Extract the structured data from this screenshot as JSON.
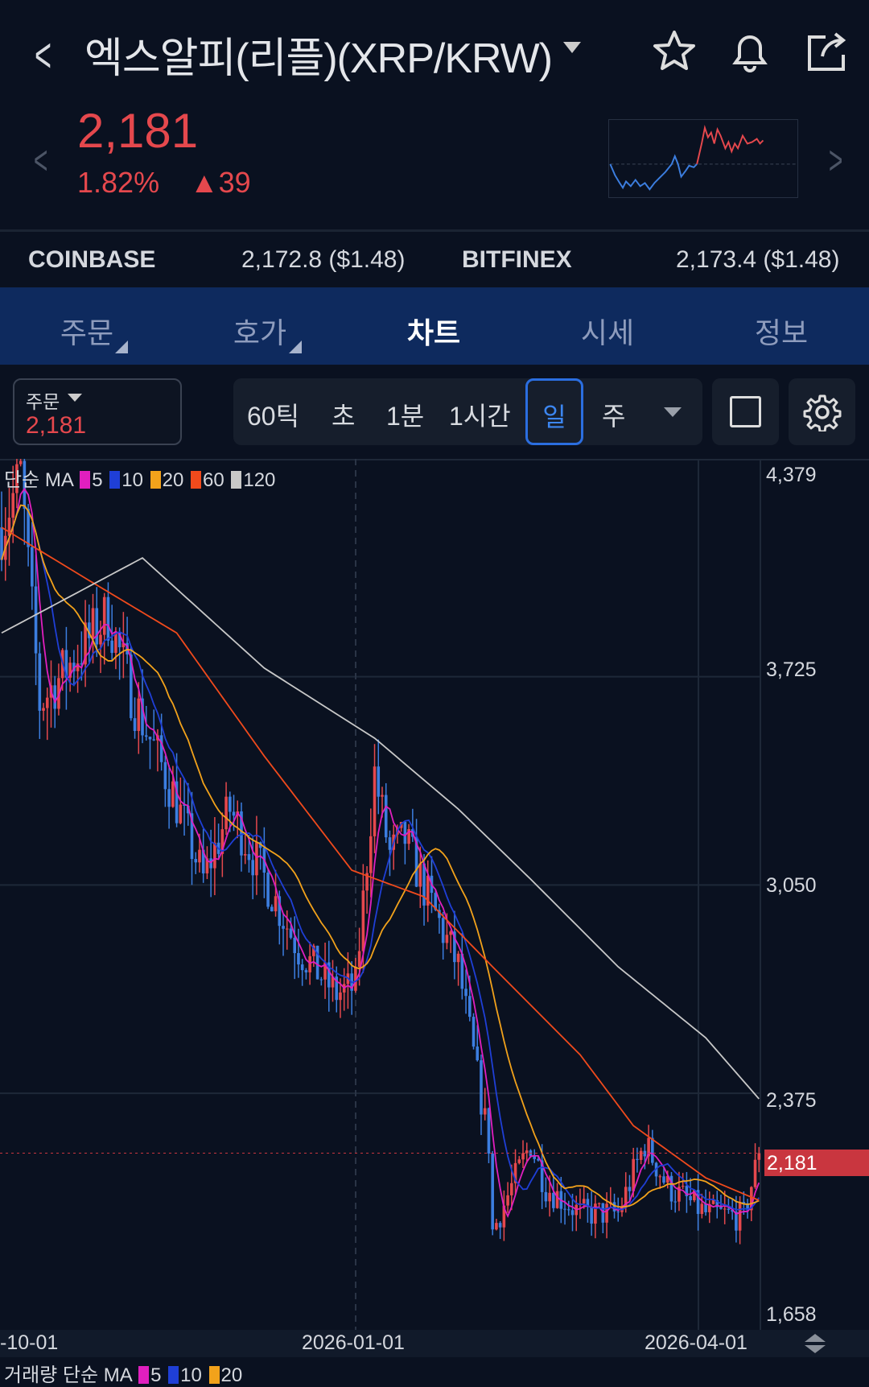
{
  "header": {
    "title": "엑스알피(리플)(XRP/KRW)",
    "icons": [
      "back-icon",
      "dropdown-caret-icon",
      "star-icon",
      "bell-icon",
      "share-icon"
    ]
  },
  "quote": {
    "price": "2,181",
    "change_pct": "1.82%",
    "change_abs": "▲39",
    "color": "#e5484d"
  },
  "exchanges": [
    {
      "name": "COINBASE",
      "value": "2,172.8 ($1.48)"
    },
    {
      "name": "BITFINEX",
      "value": "2,173.4 ($1.48)"
    }
  ],
  "tabs": [
    {
      "label": "주문"
    },
    {
      "label": "호가"
    },
    {
      "label": "차트",
      "active": true
    },
    {
      "label": "시세"
    },
    {
      "label": "정보"
    }
  ],
  "order_box": {
    "label": "주문",
    "value": "2,181"
  },
  "intervals": [
    "60틱",
    "초",
    "1분",
    "1시간",
    "일",
    "주"
  ],
  "selected_interval": "일",
  "legend": {
    "prefix": "단순 MA",
    "periods": [
      "5",
      "10",
      "20",
      "60",
      "120"
    ],
    "colors": [
      "#e01fbf",
      "#1f3fd6",
      "#f2a21b",
      "#f04a1c",
      "#c8c8c8"
    ]
  },
  "volume_legend": {
    "prefix": "거래량 단순 MA",
    "periods": [
      "5",
      "10",
      "20"
    ]
  },
  "chart_data": {
    "type": "candlestick",
    "x_ticks": [
      "-10-01",
      "2026-01-01",
      "2026-04-01"
    ],
    "y_ticks": [
      "4,379",
      "3,725",
      "3,050",
      "2,375",
      "1,658"
    ],
    "ylim": [
      1658,
      4379
    ],
    "current_price_label": "2,181",
    "closes_sampled": [
      [
        0,
        4209
      ],
      [
        5,
        4379
      ],
      [
        10,
        3638
      ],
      [
        20,
        3800
      ],
      [
        28,
        3925
      ],
      [
        35,
        3640
      ],
      [
        45,
        3350
      ],
      [
        53,
        3069
      ],
      [
        60,
        3296
      ],
      [
        70,
        3050
      ],
      [
        78,
        2842
      ],
      [
        88,
        2698
      ],
      [
        93,
        2720
      ],
      [
        98,
        3411
      ],
      [
        102,
        3150
      ],
      [
        106,
        3200
      ],
      [
        111,
        3040
      ],
      [
        120,
        2785
      ],
      [
        128,
        2213
      ],
      [
        129,
        1928
      ],
      [
        134,
        2072
      ],
      [
        139,
        2213
      ],
      [
        143,
        2072
      ],
      [
        152,
        1986
      ],
      [
        162,
        1986
      ],
      [
        169,
        2213
      ],
      [
        175,
        2072
      ],
      [
        185,
        1986
      ],
      [
        195,
        1975
      ],
      [
        199,
        2181
      ]
    ],
    "ma60": [
      [
        0,
        4209
      ],
      [
        23,
        4037
      ],
      [
        46,
        3867
      ],
      [
        69,
        3468
      ],
      [
        92,
        3098
      ],
      [
        111,
        3012
      ],
      [
        129,
        2785
      ],
      [
        152,
        2500
      ],
      [
        166,
        2270
      ],
      [
        185,
        2101
      ],
      [
        199,
        2028
      ]
    ],
    "ma120": [
      [
        0,
        3867
      ],
      [
        37,
        4110
      ],
      [
        69,
        3753
      ],
      [
        98,
        3526
      ],
      [
        120,
        3296
      ],
      [
        139,
        3069
      ],
      [
        162,
        2785
      ],
      [
        185,
        2555
      ],
      [
        199,
        2357
      ]
    ]
  }
}
